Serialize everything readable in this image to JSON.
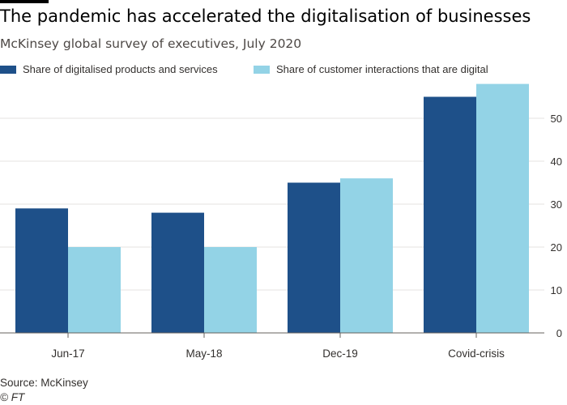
{
  "header": {
    "title": "The pandemic has accelerated the digitalisation of businesses",
    "subtitle": "McKinsey global survey of executives, July 2020"
  },
  "footer": {
    "source": "Source: McKinsey",
    "credit": "© FT"
  },
  "colors": {
    "series1": "#1e5089",
    "series2": "#93d3e6",
    "grid": "#e6e3e0",
    "text": "#33302e"
  },
  "chart_data": {
    "type": "bar",
    "categories": [
      "Jun-17",
      "May-18",
      "Dec-19",
      "Covid-crisis"
    ],
    "series": [
      {
        "name": "Share of digitalised products and services",
        "values": [
          29,
          28,
          35,
          55
        ]
      },
      {
        "name": "Share of customer interactions that are digital",
        "values": [
          20,
          20,
          36,
          58
        ]
      }
    ],
    "ylim": [
      0,
      60
    ],
    "yticks": [
      0,
      10,
      20,
      30,
      40,
      50
    ],
    "y_axis_side": "right",
    "grid": true,
    "legend_position": "top-left"
  }
}
